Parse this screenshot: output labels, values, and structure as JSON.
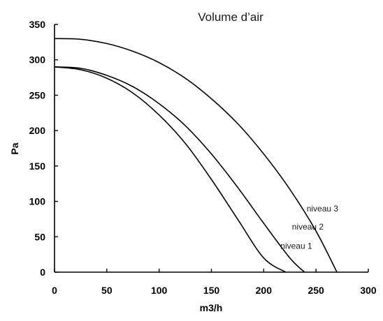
{
  "chart_data": {
    "type": "line",
    "title": "Volume d’air",
    "xlabel": "m3/h",
    "ylabel": "Pa",
    "xlim": [
      0,
      300
    ],
    "ylim": [
      0,
      350
    ],
    "xticks": [
      0,
      50,
      100,
      150,
      200,
      250,
      300
    ],
    "yticks": [
      0,
      50,
      100,
      150,
      200,
      250,
      300,
      350
    ],
    "grid": false,
    "series": [
      {
        "name": "niveau 1",
        "x": [
          0,
          25,
          50,
          75,
          100,
          125,
          150,
          175,
          200,
          221
        ],
        "y": [
          290,
          286,
          274,
          253,
          222,
          182,
          131,
          75,
          20,
          0
        ]
      },
      {
        "name": "niveau 2",
        "x": [
          0,
          25,
          50,
          75,
          100,
          125,
          150,
          175,
          200,
          225,
          239
        ],
        "y": [
          290,
          288,
          278,
          262,
          238,
          207,
          167,
          120,
          69,
          20,
          0
        ]
      },
      {
        "name": "niveau 3",
        "x": [
          0,
          25,
          50,
          75,
          100,
          125,
          150,
          175,
          200,
          225,
          250,
          270
        ],
        "y": [
          330,
          329,
          323,
          312,
          296,
          274,
          245,
          210,
          167,
          117,
          58,
          0
        ]
      }
    ],
    "annotations": [
      {
        "text": "niveau 1",
        "x": 216,
        "y": 33
      },
      {
        "text": "niveau 2",
        "x": 227,
        "y": 60
      },
      {
        "text": "niveau 3",
        "x": 241,
        "y": 86
      }
    ]
  }
}
